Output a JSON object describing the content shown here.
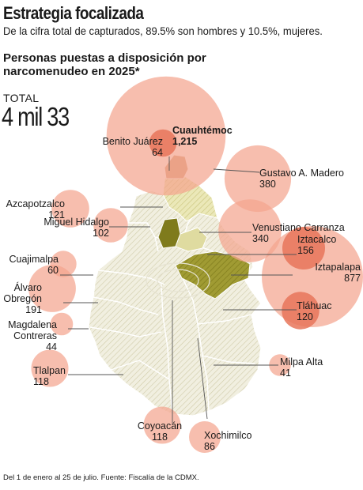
{
  "header": {
    "title": "Estrategia focalizada",
    "subtitle": "De la cifra total de capturados, 89.5% son hombres y 10.5%, mujeres.",
    "chart_title": "Personas puestas a disposición por narcomenudeo en 2025*",
    "total_label": "TOTAL",
    "total_value": "4 mil 33"
  },
  "footnote": "Del 1 de enero al 25 de julio. Fuente: Fiscalía de la CDMX.",
  "colors": {
    "bubble": "#f4a58f",
    "bubble_dark": "#e8765b",
    "map_fill": "#f1efe0",
    "hatch": "#cfcba8",
    "highlight_dark": "#7f7b1c",
    "highlight_mid": "#a09b33",
    "highlight_light": "#dfdba0",
    "cuauhtemoc": "#d39a74",
    "leader": "#555555"
  },
  "chart_data": {
    "type": "proportional-symbol-map",
    "total": 4033,
    "male_pct": 89.5,
    "female_pct": 10.5,
    "series": [
      {
        "name": "Cuauhtémoc",
        "value": 1215,
        "value_label": "1,215"
      },
      {
        "name": "Benito Juárez",
        "value": 64,
        "value_label": "64"
      },
      {
        "name": "Gustavo A. Madero",
        "value": 380,
        "value_label": "380"
      },
      {
        "name": "Azcapotzalco",
        "value": 121,
        "value_label": "121"
      },
      {
        "name": "Miguel Hidalgo",
        "value": 102,
        "value_label": "102"
      },
      {
        "name": "Venustiano Carranza",
        "value": 340,
        "value_label": "340"
      },
      {
        "name": "Iztacalco",
        "value": 156,
        "value_label": "156"
      },
      {
        "name": "Cuajimalpa",
        "value": 60,
        "value_label": "60"
      },
      {
        "name": "Iztapalapa",
        "value": 877,
        "value_label": "877"
      },
      {
        "name": "Álvaro Obregón",
        "value": 191,
        "value_label": "191"
      },
      {
        "name": "Tláhuac",
        "value": 120,
        "value_label": "120"
      },
      {
        "name": "Magdalena Contreras",
        "value": 44,
        "value_label": "44"
      },
      {
        "name": "Milpa Alta",
        "value": 41,
        "value_label": "41"
      },
      {
        "name": "Tlalpan",
        "value": 118,
        "value_label": "118"
      },
      {
        "name": "Coyoacán",
        "value": 118,
        "value_label": "118"
      },
      {
        "name": "Xochimilco",
        "value": 86,
        "value_label": "86"
      }
    ]
  },
  "labels": {
    "cuauhtemoc": {
      "name": "Cuauhtémoc",
      "value": "1,215"
    },
    "benito_juarez": {
      "name": "Benito Juárez",
      "value": "64"
    },
    "gam": {
      "name": "Gustavo A. Madero",
      "value": "380"
    },
    "azcapotzalco": {
      "name": "Azcapotzalco",
      "value": "121"
    },
    "miguel_hidalgo": {
      "name": "Miguel Hidalgo",
      "value": "102"
    },
    "venustiano": {
      "name": "Venustiano Carranza",
      "value": "340"
    },
    "iztacalco": {
      "name": "Iztacalco",
      "value": "156"
    },
    "cuajimalpa": {
      "name": "Cuajimalpa",
      "value": "60"
    },
    "iztapalapa": {
      "name": "Iztapalapa",
      "value": "877"
    },
    "alvaro": {
      "name1": "Álvaro",
      "name2": "Obregón",
      "value": "191"
    },
    "tlahuac": {
      "name": "Tláhuac",
      "value": "120"
    },
    "magdalena": {
      "name1": "Magdalena",
      "name2": "Contreras",
      "value": "44"
    },
    "milpa": {
      "name": "Milpa Alta",
      "value": "41"
    },
    "tlalpan": {
      "name": "Tlalpan",
      "value": "118"
    },
    "coyoacan": {
      "name": "Coyoacán",
      "value": "118"
    },
    "xochimilco": {
      "name": "Xochimilco",
      "value": "86"
    }
  }
}
